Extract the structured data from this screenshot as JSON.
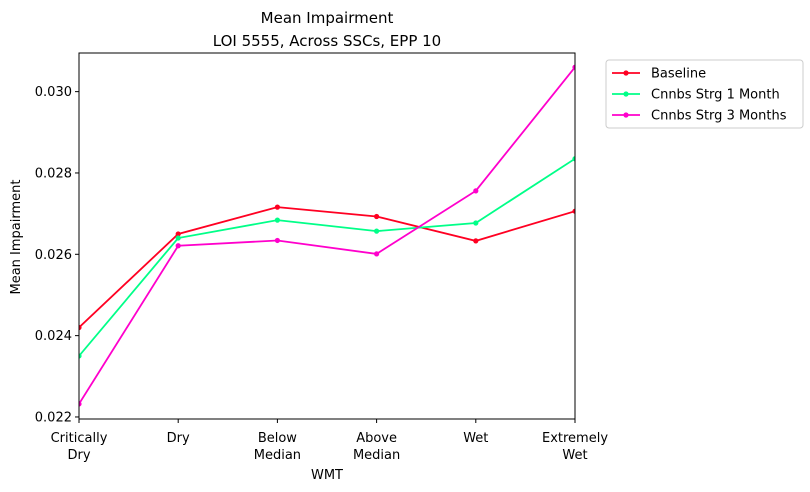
{
  "chart_data": {
    "type": "line",
    "title_line1": "Mean Impairment",
    "title_line2": "LOI 5555, Across SSCs, EPP 10",
    "xlabel": "WMT",
    "ylabel": "Mean Impairment",
    "categories": [
      [
        "Critically",
        "Dry"
      ],
      [
        "Dry"
      ],
      [
        "Below",
        "Median"
      ],
      [
        "Above",
        "Median"
      ],
      [
        "Wet"
      ],
      [
        "Extremely",
        "Wet"
      ]
    ],
    "ylim": [
      0.02195,
      0.03095
    ],
    "yticks": [
      0.022,
      0.024,
      0.026,
      0.028,
      0.03
    ],
    "ytick_labels": [
      "0.022",
      "0.024",
      "0.026",
      "0.028",
      "0.030"
    ],
    "grid": false,
    "legend_position": "outside-top-right",
    "series": [
      {
        "name": "Baseline",
        "color": "#ff0022",
        "values": [
          0.0242,
          0.0265,
          0.02716,
          0.02693,
          0.02633,
          0.02706
        ]
      },
      {
        "name": "Cnnbs Strg 1 Month",
        "color": "#00ff88",
        "values": [
          0.0235,
          0.0264,
          0.02684,
          0.02657,
          0.02677,
          0.02835
        ]
      },
      {
        "name": "Cnnbs Strg 3 Months",
        "color": "#ff00cc",
        "values": [
          0.02232,
          0.02621,
          0.02634,
          0.02601,
          0.02756,
          0.0306
        ]
      }
    ]
  }
}
